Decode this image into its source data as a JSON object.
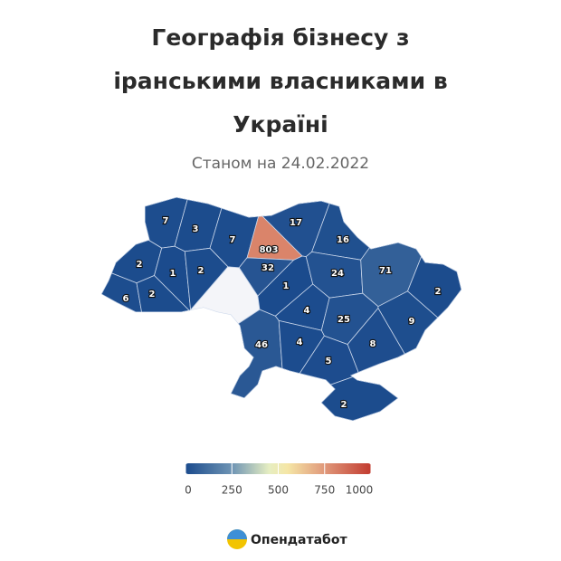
{
  "title": [
    "Географія бізнесу з",
    "іранськими власниками в",
    "Україні"
  ],
  "subtitle": "Станом на 24.02.2022",
  "map": {
    "values": [
      7,
      3,
      7,
      17,
      16,
      803,
      32,
      2,
      1,
      2,
      1,
      24,
      71,
      6,
      2,
      4,
      2,
      25,
      9,
      46,
      4,
      8,
      5,
      2
    ],
    "colorbar": {
      "range": [
        0,
        1000
      ],
      "ticks": [
        0,
        250,
        500,
        750,
        1000
      ],
      "stops": [
        {
          "value": 0,
          "color": "#1b4b8d"
        },
        {
          "value": 250,
          "color": "#6e94b4"
        },
        {
          "value": 450,
          "color": "#e6eec2"
        },
        {
          "value": 550,
          "color": "#f5e6a6"
        },
        {
          "value": 750,
          "color": "#e0987a"
        },
        {
          "value": 1000,
          "color": "#c23b30"
        }
      ]
    }
  },
  "logo": "Опендатабот"
}
